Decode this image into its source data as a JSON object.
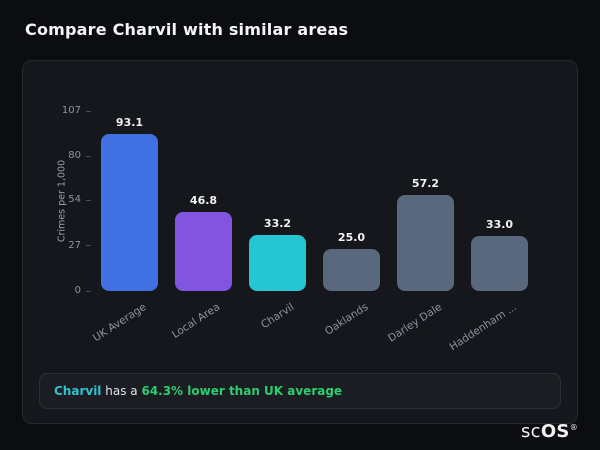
{
  "page": {
    "title": "Compare Charvil with similar areas",
    "logo": {
      "sc": "sc",
      "os": "OS",
      "reg": "®"
    }
  },
  "chart_data": {
    "type": "bar",
    "categories": [
      "UK Average",
      "Local Area",
      "Charvil",
      "Oaklands",
      "Darley Dale",
      "Haddenham ..."
    ],
    "values": [
      93.1,
      46.8,
      33.2,
      25.0,
      57.2,
      33.0
    ],
    "value_labels": [
      "93.1",
      "46.8",
      "33.2",
      "25.0",
      "57.2",
      "33.0"
    ],
    "bar_colors": [
      "#4170e2",
      "#8155e0",
      "#25c5d2",
      "#59687d",
      "#59687d",
      "#59687d"
    ],
    "title": "",
    "xlabel": "",
    "ylabel": "Crimes per 1,000",
    "ylim": [
      0,
      107
    ],
    "yticks": [
      0,
      27,
      54,
      80,
      107
    ],
    "grid": false,
    "legend": false
  },
  "footer": {
    "subject": "Charvil",
    "middle": " has a ",
    "highlight": "64.3% lower than UK average",
    "subject_color": "#2bc5d2",
    "highlight_color": "#2ecc71"
  }
}
